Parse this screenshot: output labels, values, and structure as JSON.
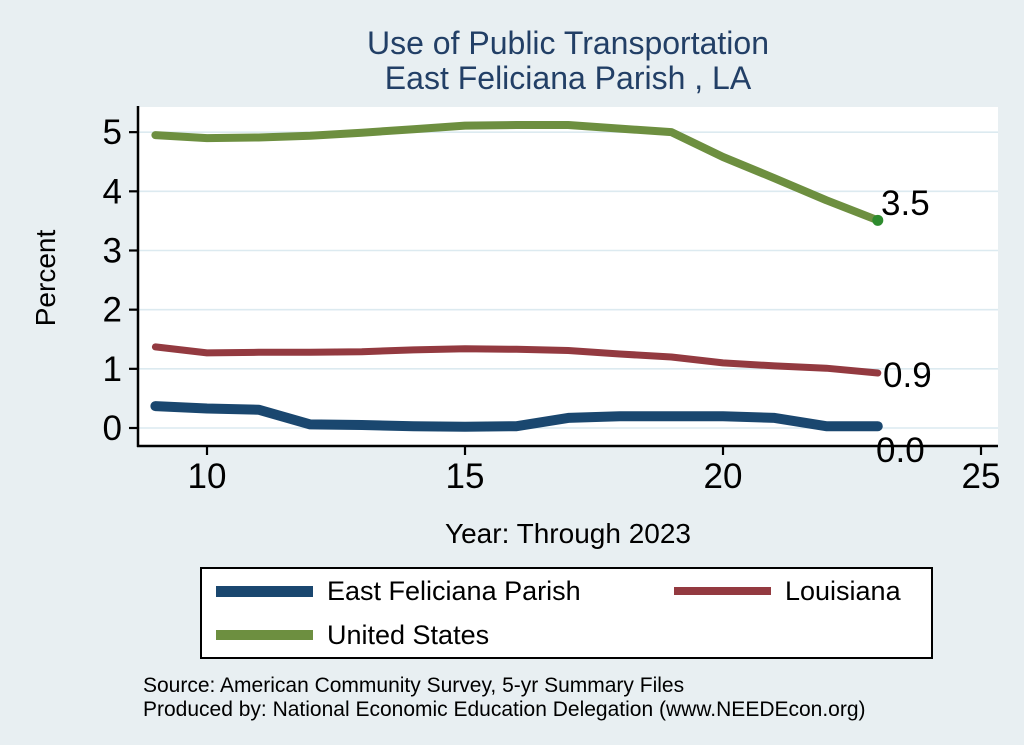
{
  "title": {
    "line1": "Use of Public Transportation",
    "line2": "East Feliciana Parish , LA"
  },
  "axes": {
    "y_label": "Percent",
    "x_label": "Year: Through 2023"
  },
  "chart_data": {
    "type": "line",
    "title": "Use of Public Transportation - East Feliciana Parish , LA",
    "xlabel": "Year: Through 2023",
    "ylabel": "Percent",
    "x": [
      9,
      10,
      11,
      12,
      13,
      14,
      15,
      16,
      17,
      18,
      19,
      20,
      21,
      22,
      23
    ],
    "x_ticks": [
      10,
      15,
      20,
      25
    ],
    "y_ticks": [
      0,
      1,
      2,
      3,
      4,
      5
    ],
    "xlim": [
      8.7,
      25.3
    ],
    "ylim": [
      -0.3,
      5.4
    ],
    "grid": true,
    "legend_position": "bottom",
    "series": [
      {
        "name": "East Feliciana Parish",
        "color": "#1a476f",
        "values": [
          0.37,
          0.33,
          0.31,
          0.06,
          0.05,
          0.03,
          0.02,
          0.03,
          0.17,
          0.2,
          0.2,
          0.2,
          0.17,
          0.03,
          0.03
        ],
        "end_label": "0.0"
      },
      {
        "name": "Louisiana",
        "color": "#933a40",
        "values": [
          1.37,
          1.27,
          1.28,
          1.28,
          1.29,
          1.32,
          1.34,
          1.33,
          1.31,
          1.25,
          1.2,
          1.1,
          1.05,
          1.01,
          0.93
        ],
        "end_label": "0.9"
      },
      {
        "name": "United States",
        "color": "#6d8f40",
        "values": [
          4.95,
          4.9,
          4.91,
          4.94,
          4.99,
          5.05,
          5.11,
          5.12,
          5.12,
          5.06,
          5.0,
          4.58,
          4.22,
          3.85,
          3.51
        ],
        "end_label": "3.5",
        "end_marker_color": "#2e8b2e"
      }
    ]
  },
  "footer": {
    "source": "Source: American Community Survey, 5-yr Summary Files",
    "produced_by": "Produced by: National Economic Education Delegation (www.NEEDEcon.org)"
  },
  "colors": {
    "background": "#e8eff2",
    "plot_background": "#ffffff",
    "gridline": "#dceaf0",
    "axis": "#000000",
    "title_text": "#223f66"
  }
}
